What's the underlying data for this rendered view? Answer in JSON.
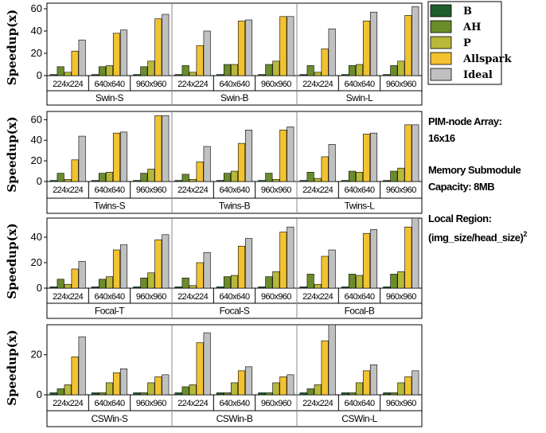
{
  "legend": {
    "series": [
      {
        "name": "B",
        "color": "#1e5d2d"
      },
      {
        "name": "AH",
        "color": "#6b8c2b"
      },
      {
        "name": "P",
        "color": "#b8b83a"
      },
      {
        "name": "Allspark",
        "color": "#f2c230"
      },
      {
        "name": "Ideal",
        "color": "#c0c0c0"
      }
    ]
  },
  "annotations": {
    "pim_line1": "PIM-node Array:",
    "pim_line2": "16x16",
    "mem_line1": "Memory Submodule",
    "mem_line2": "Capacity:   8MB",
    "local_line1": "Local Region:",
    "local_line2": "(img_size/head_size)",
    "local_sup": "2"
  },
  "chart_data": [
    {
      "type": "bar",
      "ylabel": "Speedup(x)",
      "ylim": [
        0,
        65
      ],
      "yticks": [
        0,
        20,
        40,
        60
      ],
      "groups": [
        {
          "model": "Swin-S",
          "categories": [
            "224x224",
            "640x640",
            "960x960"
          ],
          "values": {
            "B": [
              1,
              1,
              1
            ],
            "AH": [
              8,
              8,
              8
            ],
            "P": [
              3,
              9,
              13
            ],
            "Allspark": [
              22,
              38,
              51
            ],
            "Ideal": [
              32,
              41,
              55
            ]
          }
        },
        {
          "model": "Swin-B",
          "categories": [
            "224x224",
            "640x640",
            "960x960"
          ],
          "values": {
            "B": [
              1,
              1,
              1
            ],
            "AH": [
              9,
              10,
              10
            ],
            "P": [
              3,
              10,
              13
            ],
            "Allspark": [
              27,
              49,
              53
            ],
            "Ideal": [
              40,
              50,
              53
            ]
          }
        },
        {
          "model": "Swin-L",
          "categories": [
            "224x224",
            "640x640",
            "960x960"
          ],
          "values": {
            "B": [
              1,
              1,
              1
            ],
            "AH": [
              9,
              9,
              9
            ],
            "P": [
              3,
              10,
              13
            ],
            "Allspark": [
              24,
              49,
              54
            ],
            "Ideal": [
              42,
              57,
              62
            ]
          }
        }
      ]
    },
    {
      "type": "bar",
      "ylabel": "Speedup(x)",
      "ylim": [
        0,
        68
      ],
      "yticks": [
        0,
        20,
        40,
        60
      ],
      "groups": [
        {
          "model": "Twins-S",
          "categories": [
            "224x224",
            "640x640",
            "960x960"
          ],
          "values": {
            "B": [
              1,
              1,
              1
            ],
            "AH": [
              8,
              8,
              8
            ],
            "P": [
              2,
              9,
              12
            ],
            "Allspark": [
              21,
              47,
              64
            ],
            "Ideal": [
              44,
              48,
              64
            ]
          }
        },
        {
          "model": "Twins-B",
          "categories": [
            "224x224",
            "640x640",
            "960x960"
          ],
          "values": {
            "B": [
              1,
              1,
              1
            ],
            "AH": [
              7,
              8,
              8
            ],
            "P": [
              2,
              10,
              2
            ],
            "Allspark": [
              19,
              37,
              50
            ],
            "Ideal": [
              34,
              50,
              53
            ]
          }
        },
        {
          "model": "Twins-L",
          "categories": [
            "224x224",
            "640x640",
            "960x960"
          ],
          "values": {
            "B": [
              1,
              1,
              1
            ],
            "AH": [
              9,
              10,
              10
            ],
            "P": [
              3,
              9,
              13
            ],
            "Allspark": [
              24,
              46,
              55
            ],
            "Ideal": [
              36,
              47,
              55
            ]
          }
        }
      ]
    },
    {
      "type": "bar",
      "ylabel": "Speedup(x)",
      "ylim": [
        0,
        55
      ],
      "yticks": [
        0,
        20,
        40
      ],
      "groups": [
        {
          "model": "Focal-T",
          "categories": [
            "224x224",
            "640x640",
            "960x960"
          ],
          "values": {
            "B": [
              1,
              1,
              1
            ],
            "AH": [
              7,
              7,
              8
            ],
            "P": [
              3,
              9,
              12
            ],
            "Allspark": [
              15,
              30,
              38
            ],
            "Ideal": [
              21,
              34,
              42
            ]
          }
        },
        {
          "model": "Focal-S",
          "categories": [
            "224x224",
            "640x640",
            "960x960"
          ],
          "values": {
            "B": [
              1,
              1,
              1
            ],
            "AH": [
              8,
              9,
              9
            ],
            "P": [
              2,
              10,
              13
            ],
            "Allspark": [
              20,
              33,
              44
            ],
            "Ideal": [
              28,
              39,
              48
            ]
          }
        },
        {
          "model": "Focal-B",
          "categories": [
            "224x224",
            "640x640",
            "960x960"
          ],
          "values": {
            "B": [
              1,
              1,
              1
            ],
            "AH": [
              11,
              11,
              11
            ],
            "P": [
              3,
              10,
              13
            ],
            "Allspark": [
              25,
              43,
              48
            ],
            "Ideal": [
              30,
              46,
              55
            ]
          }
        }
      ]
    },
    {
      "type": "bar",
      "ylabel": "Speedup(x)",
      "ylim": [
        0,
        35
      ],
      "yticks": [
        0,
        20
      ],
      "groups": [
        {
          "model": "CSWin-S",
          "categories": [
            "224x224",
            "640x640",
            "960x960"
          ],
          "values": {
            "B": [
              1,
              1,
              1
            ],
            "AH": [
              3,
              1,
              1
            ],
            "P": [
              5,
              6,
              6
            ],
            "Allspark": [
              19,
              11,
              9
            ],
            "Ideal": [
              29,
              13,
              10
            ]
          }
        },
        {
          "model": "CSWin-B",
          "categories": [
            "224x224",
            "640x640",
            "960x960"
          ],
          "values": {
            "B": [
              1,
              1,
              1
            ],
            "AH": [
              4,
              1,
              1
            ],
            "P": [
              5,
              6,
              6
            ],
            "Allspark": [
              26,
              12,
              9
            ],
            "Ideal": [
              31,
              14,
              10
            ]
          }
        },
        {
          "model": "CSWin-L",
          "categories": [
            "224x224",
            "640x640",
            "960x960"
          ],
          "values": {
            "B": [
              1,
              1,
              1
            ],
            "AH": [
              3,
              1,
              1
            ],
            "P": [
              5,
              6,
              6
            ],
            "Allspark": [
              27,
              12,
              9
            ],
            "Ideal": [
              35,
              15,
              12
            ]
          }
        }
      ]
    }
  ]
}
